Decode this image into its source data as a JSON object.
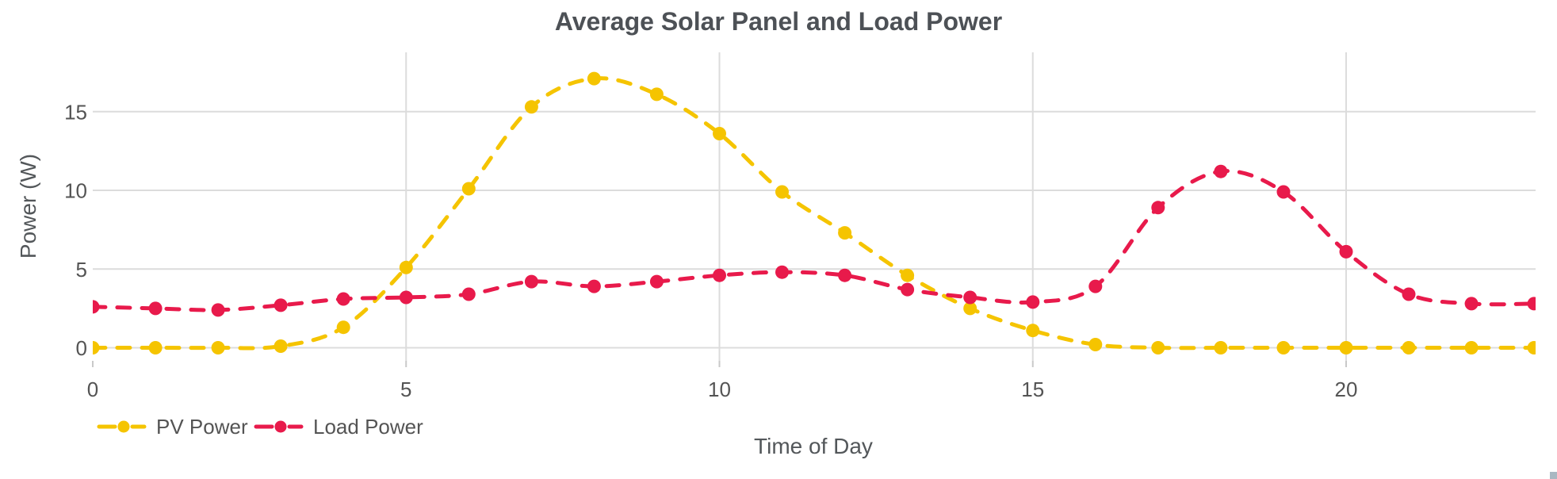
{
  "chart_data": {
    "type": "line",
    "title": "Average Solar Panel and Load Power",
    "xlabel": "Time of Day",
    "ylabel": "Power (W)",
    "x": [
      0,
      1,
      2,
      3,
      4,
      5,
      6,
      7,
      8,
      9,
      10,
      11,
      12,
      13,
      14,
      15,
      16,
      17,
      18,
      19,
      20,
      21,
      22,
      23
    ],
    "series": [
      {
        "name": "PV Power",
        "color": "#F5C400",
        "line_style": "dashed",
        "marker": "circle",
        "values": [
          0.0,
          0.0,
          0.0,
          0.1,
          1.3,
          5.1,
          10.1,
          15.3,
          17.1,
          16.1,
          13.6,
          9.9,
          7.3,
          4.6,
          2.5,
          1.1,
          0.2,
          0.0,
          0.0,
          0.0,
          0.0,
          0.0,
          0.0,
          0.0
        ]
      },
      {
        "name": "Load Power",
        "color": "#E81A4B",
        "line_style": "dashed",
        "marker": "circle",
        "values": [
          2.6,
          2.5,
          2.4,
          2.7,
          3.1,
          3.2,
          3.4,
          4.2,
          3.9,
          4.2,
          4.6,
          4.8,
          4.6,
          3.7,
          3.2,
          2.9,
          3.9,
          8.9,
          11.2,
          9.9,
          6.1,
          3.4,
          2.8,
          2.8
        ]
      }
    ],
    "x_ticks": [
      0,
      5,
      10,
      15,
      20
    ],
    "y_ticks": [
      0,
      5,
      10,
      15
    ],
    "x_range": [
      0,
      23
    ],
    "y_range": [
      -0.9,
      18.8
    ],
    "grid": true,
    "legend_position": "bottom-left",
    "styles": {
      "grid_color": "#dcdcdc",
      "tick_label_color": "#545454",
      "axis_title_color": "#53575a",
      "title_color": "#4d5156",
      "background": "#ffffff",
      "scroll_corner_color": "#a9b8c2"
    }
  }
}
